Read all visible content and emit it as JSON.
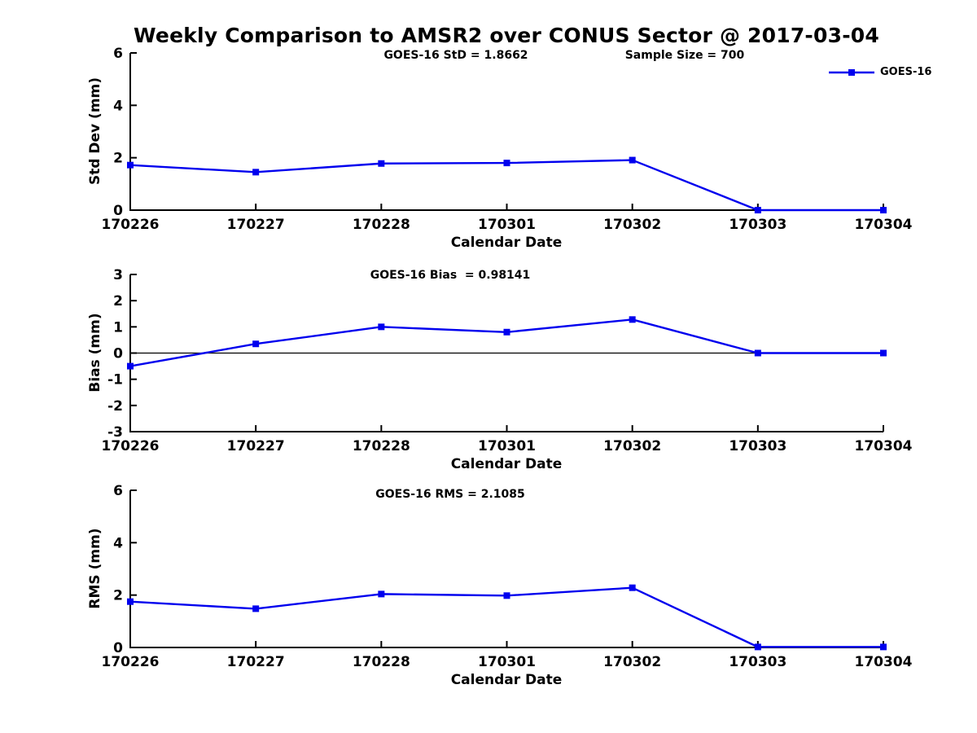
{
  "title": "Weekly Comparison to AMSR2 over CONUS Sector @ 2017-03-04",
  "legend": {
    "label": "GOES-16"
  },
  "stats": {
    "std": "1.8662",
    "bias": "0.98141",
    "rms": "2.1085",
    "sample_size": "700"
  },
  "chart_data": [
    {
      "type": "line",
      "panel": "std-dev",
      "annotations": [
        "GOES-16 StD = 1.8662",
        "Sample Size = 700"
      ],
      "ylabel": "Std Dev (mm)",
      "xlabel": "Calendar Date",
      "ylim": [
        0,
        6
      ],
      "yticks": [
        0,
        2,
        4,
        6
      ],
      "categories": [
        "170226",
        "170227",
        "170228",
        "170301",
        "170302",
        "170303",
        "170304"
      ],
      "series": [
        {
          "name": "GOES-16",
          "values": [
            1.72,
            1.45,
            1.78,
            1.8,
            1.91,
            0,
            0
          ]
        }
      ],
      "line_color": "#0000EE",
      "marker": "square",
      "grid": false,
      "legend_position": "top-right",
      "zero_line": false
    },
    {
      "type": "line",
      "panel": "bias",
      "annotations": [
        "GOES-16 Bias  = 0.98141"
      ],
      "ylabel": "Bias (mm)",
      "xlabel": "Calendar Date",
      "ylim": [
        -3,
        3
      ],
      "yticks": [
        3,
        2,
        1,
        0,
        -1,
        -2,
        -3
      ],
      "categories": [
        "170226",
        "170227",
        "170228",
        "170301",
        "170302",
        "170303",
        "170304"
      ],
      "series": [
        {
          "name": "GOES-16",
          "values": [
            -0.5,
            0.35,
            1.0,
            0.8,
            1.28,
            0,
            0
          ]
        }
      ],
      "line_color": "#0000EE",
      "marker": "square",
      "grid": false,
      "legend_position": "none",
      "zero_line": true
    },
    {
      "type": "line",
      "panel": "rms",
      "annotations": [
        "GOES-16 RMS = 2.1085"
      ],
      "ylabel": "RMS (mm)",
      "xlabel": "Calendar Date",
      "ylim": [
        0,
        6
      ],
      "yticks": [
        0,
        2,
        4,
        6
      ],
      "categories": [
        "170226",
        "170227",
        "170228",
        "170301",
        "170302",
        "170303",
        "170304"
      ],
      "series": [
        {
          "name": "GOES-16",
          "values": [
            1.75,
            1.48,
            2.04,
            1.98,
            2.28,
            0.02,
            0.02
          ]
        }
      ],
      "line_color": "#0000EE",
      "marker": "square",
      "grid": false,
      "legend_position": "none",
      "zero_line": false
    }
  ]
}
